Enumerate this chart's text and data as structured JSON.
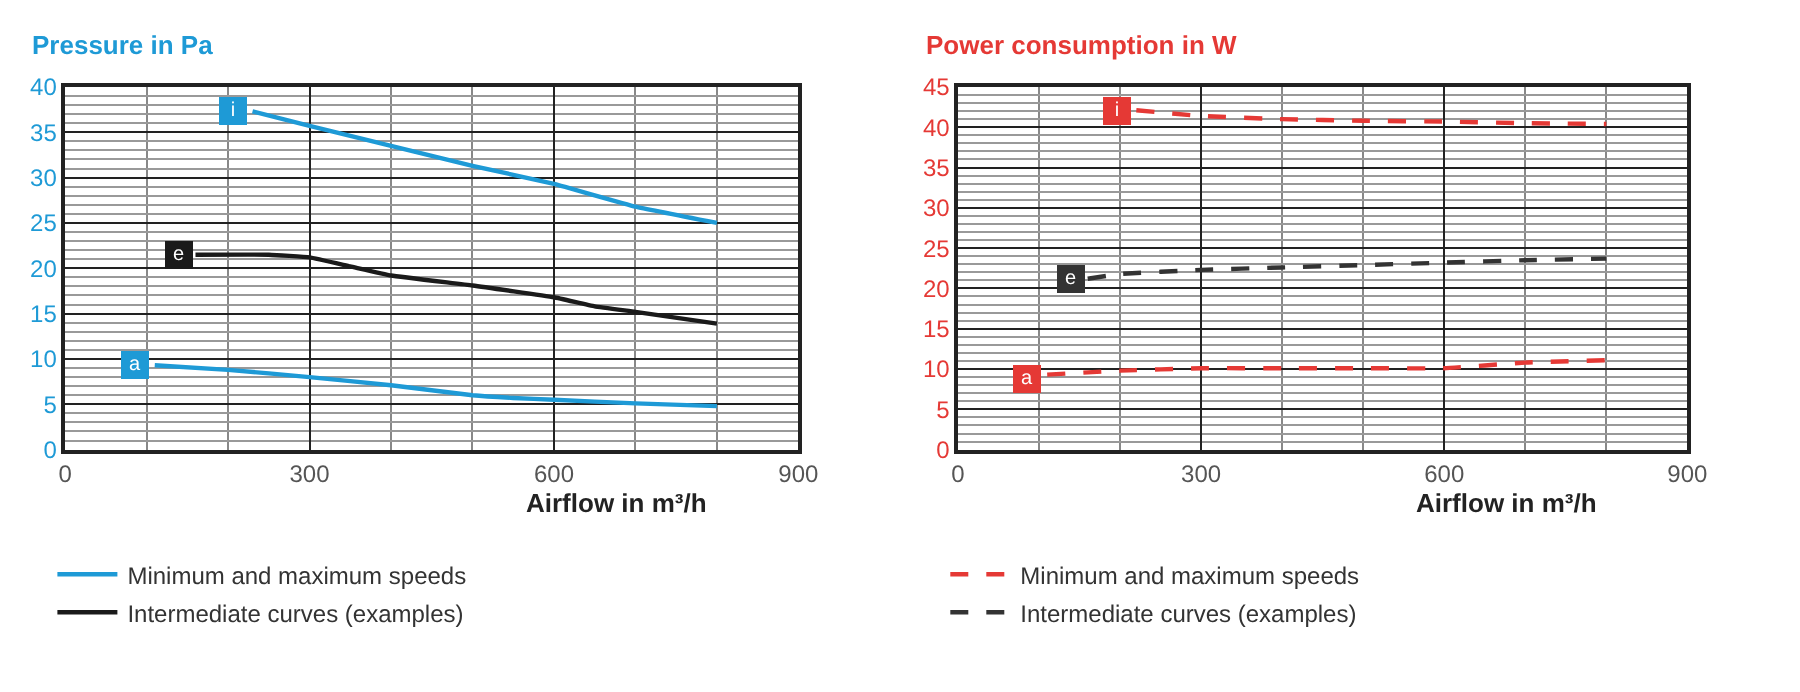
{
  "chart_data": [
    {
      "type": "line",
      "title": "Pressure in Pa",
      "xlabel": "Airflow in m³/h",
      "xlim": [
        0,
        900
      ],
      "xticks": [
        0,
        300,
        600,
        900
      ],
      "ylim": [
        0,
        40
      ],
      "yticks": [
        0,
        5,
        10,
        15,
        20,
        25,
        30,
        35,
        40
      ],
      "grid": true,
      "legend": "bottom left",
      "line_style": "solid",
      "series": [
        {
          "name": "Minimum and maximum speeds",
          "color": "#1e9ad6",
          "x": [
            230,
            300,
            400,
            500,
            600,
            700,
            800
          ],
          "values": [
            37.3,
            35.7,
            33.5,
            31.3,
            29.3,
            26.8,
            25
          ]
        },
        {
          "name": "Intermediate curves (examples)",
          "color": "#1a1a1a",
          "x": [
            160,
            250,
            300,
            350,
            400,
            500,
            600,
            650,
            700,
            800
          ],
          "values": [
            21.5,
            21.5,
            21.2,
            20.2,
            19.2,
            18.1,
            16.8,
            15.8,
            15.2,
            13.9
          ]
        },
        {
          "color": "#1e9ad6",
          "x": [
            110,
            200,
            300,
            400,
            500,
            550,
            600,
            700,
            800
          ],
          "values": [
            9.3,
            8.8,
            8.0,
            7.1,
            6.0,
            5.7,
            5.5,
            5.1,
            4.8
          ]
        }
      ],
      "annotations": [
        {
          "text": "i",
          "x": 205,
          "y": 37.3
        },
        {
          "text": "e",
          "x": 140,
          "y": 21.5
        },
        {
          "text": "a",
          "x": 85,
          "y": 9.3
        }
      ]
    },
    {
      "type": "line",
      "title": "Power consumption in W",
      "xlabel": "Airflow in m³/h",
      "xlim": [
        0,
        900
      ],
      "xticks": [
        0,
        300,
        600,
        900
      ],
      "ylim": [
        0,
        45
      ],
      "yticks": [
        0,
        5,
        10,
        15,
        20,
        25,
        30,
        35,
        40,
        45
      ],
      "grid": true,
      "legend": "bottom left",
      "line_style": "dashed",
      "series": [
        {
          "name": "Minimum and maximum speeds",
          "color": "#e53935",
          "x": [
            220,
            300,
            400,
            500,
            600,
            700,
            800
          ],
          "values": [
            42.1,
            41.4,
            41.0,
            40.8,
            40.7,
            40.5,
            40.4
          ]
        },
        {
          "name": "Intermediate curves (examples)",
          "color": "#333333",
          "x": [
            160,
            200,
            300,
            400,
            500,
            600,
            700,
            800
          ],
          "values": [
            21.2,
            21.8,
            22.3,
            22.6,
            22.9,
            23.2,
            23.5,
            23.7
          ]
        },
        {
          "color": "#e53935",
          "x": [
            110,
            200,
            300,
            400,
            500,
            600,
            700,
            800
          ],
          "values": [
            9.3,
            9.8,
            10.1,
            10.1,
            10.1,
            10.1,
            10.8,
            11.1
          ]
        }
      ],
      "annotations": [
        {
          "text": "i",
          "x": 195,
          "y": 42.1
        },
        {
          "text": "e",
          "x": 140,
          "y": 21.2
        },
        {
          "text": "a",
          "x": 85,
          "y": 8.8
        }
      ]
    }
  ]
}
